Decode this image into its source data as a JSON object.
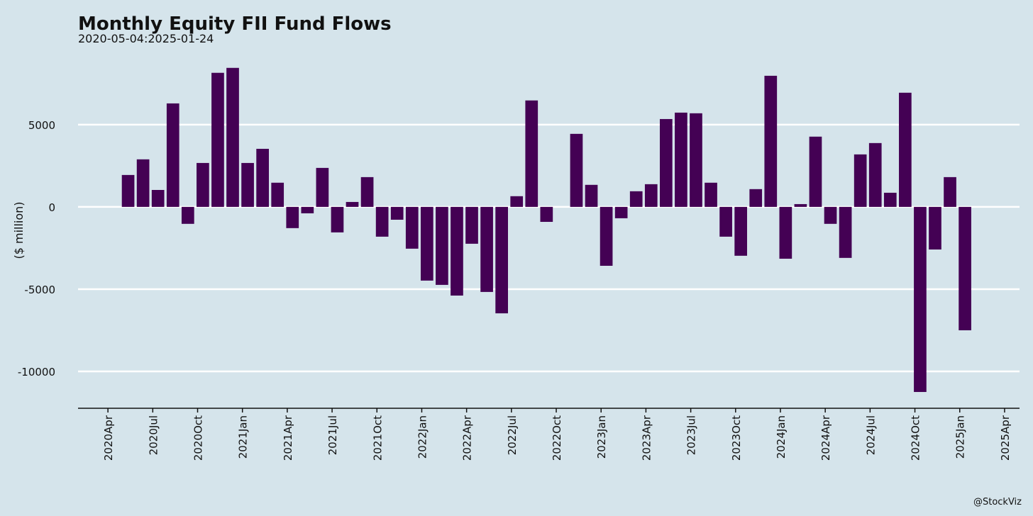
{
  "chart_data": {
    "type": "bar",
    "title": "Monthly Equity FII Fund Flows",
    "subtitle": "2020-05-04:2025-01-24",
    "y_label": "($ million)",
    "caption": "@StockViz",
    "color": "#440154",
    "grid": true,
    "x": [
      "2020-05",
      "2020-06",
      "2020-07",
      "2020-08",
      "2020-09",
      "2020-10",
      "2020-11",
      "2020-12",
      "2021-01",
      "2021-02",
      "2021-03",
      "2021-04",
      "2021-05",
      "2021-06",
      "2021-07",
      "2021-08",
      "2021-09",
      "2021-10",
      "2021-11",
      "2021-12",
      "2022-01",
      "2022-02",
      "2022-03",
      "2022-04",
      "2022-05",
      "2022-06",
      "2022-07",
      "2022-08",
      "2022-09",
      "2022-10",
      "2022-11",
      "2022-12",
      "2023-01",
      "2023-02",
      "2023-03",
      "2023-04",
      "2023-05",
      "2023-06",
      "2023-07",
      "2023-08",
      "2023-09",
      "2023-10",
      "2023-11",
      "2023-12",
      "2024-01",
      "2024-02",
      "2024-03",
      "2024-04",
      "2024-05",
      "2024-06",
      "2024-07",
      "2024-08",
      "2024-09",
      "2024-10",
      "2024-11",
      "2024-12",
      "2025-01"
    ],
    "values": [
      1940,
      2890,
      1030,
      6290,
      -1030,
      2670,
      8150,
      8450,
      2670,
      3530,
      1470,
      -1290,
      -390,
      2370,
      -1550,
      300,
      1810,
      -1810,
      -780,
      -2540,
      -4480,
      -4740,
      -5390,
      -2240,
      -5170,
      -6470,
      650,
      6470,
      -910,
      0,
      4440,
      1340,
      -3580,
      -690,
      950,
      1380,
      5340,
      5730,
      5690,
      1470,
      -1810,
      -2970,
      1080,
      7970,
      -3150,
      170,
      4270,
      -1030,
      -3100,
      3190,
      3880,
      860,
      6940,
      -11250,
      -2590,
      1810,
      -7500
    ],
    "xlim": [
      "2020-02",
      "2025-05"
    ],
    "xticks": [
      {
        "value": "2020-04",
        "label": "2020Apr"
      },
      {
        "value": "2020-07",
        "label": "2020Jul"
      },
      {
        "value": "2020-10",
        "label": "2020Oct"
      },
      {
        "value": "2021-01",
        "label": "2021Jan"
      },
      {
        "value": "2021-04",
        "label": "2021Apr"
      },
      {
        "value": "2021-07",
        "label": "2021Jul"
      },
      {
        "value": "2021-10",
        "label": "2021Oct"
      },
      {
        "value": "2022-01",
        "label": "2022Jan"
      },
      {
        "value": "2022-04",
        "label": "2022Apr"
      },
      {
        "value": "2022-07",
        "label": "2022Jul"
      },
      {
        "value": "2022-10",
        "label": "2022Oct"
      },
      {
        "value": "2023-01",
        "label": "2023Jan"
      },
      {
        "value": "2023-04",
        "label": "2023Apr"
      },
      {
        "value": "2023-07",
        "label": "2023Jul"
      },
      {
        "value": "2023-10",
        "label": "2023Oct"
      },
      {
        "value": "2024-01",
        "label": "2024Jan"
      },
      {
        "value": "2024-04",
        "label": "2024Apr"
      },
      {
        "value": "2024-07",
        "label": "2024Jul"
      },
      {
        "value": "2024-10",
        "label": "2024Oct"
      },
      {
        "value": "2025-01",
        "label": "2025Jan"
      },
      {
        "value": "2025-04",
        "label": "2025Apr"
      }
    ],
    "ylim": [
      -12240,
      9000
    ],
    "yticks": [
      -10000,
      -5000,
      0,
      5000
    ]
  }
}
